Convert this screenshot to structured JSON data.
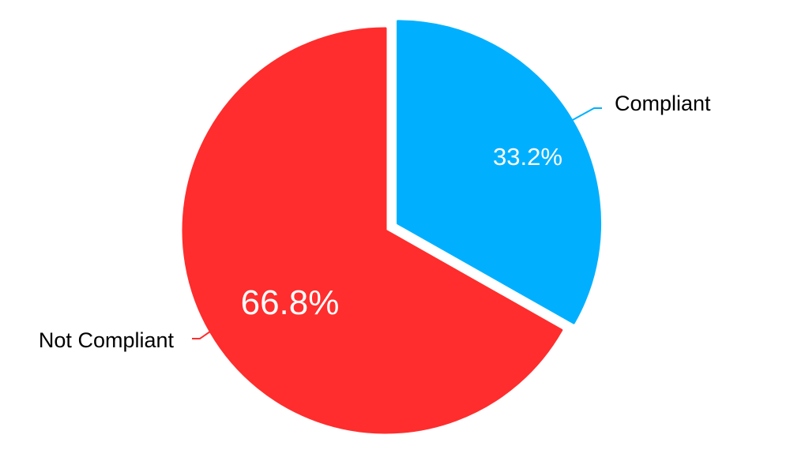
{
  "chart_data": {
    "type": "pie",
    "slices": [
      {
        "label": "Compliant",
        "value": 33.2,
        "value_label": "33.2%",
        "color": "#00B0FF",
        "exploded": true
      },
      {
        "label": "Not Compliant",
        "value": 66.8,
        "value_label": "66.8%",
        "color": "#FF2D2D",
        "exploded": false
      }
    ],
    "start_angle": "top, clockwise",
    "legend": "none (outside labels with leader lines)"
  }
}
